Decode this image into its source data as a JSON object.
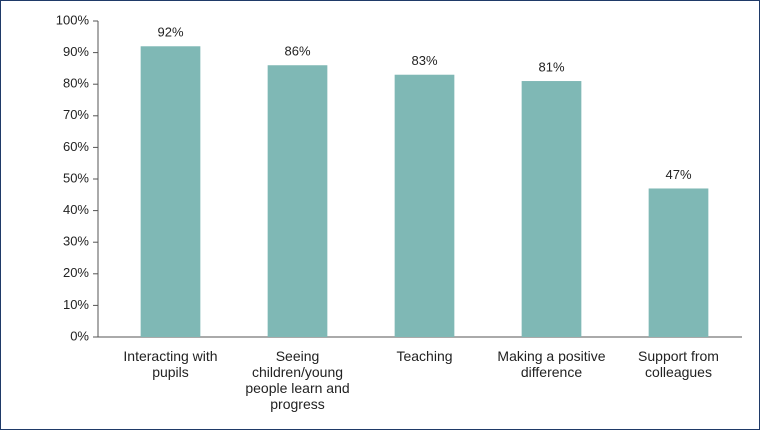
{
  "chart_data": {
    "type": "bar",
    "categories": [
      "Interacting with pupils",
      "Seeing children/young people learn and progress",
      "Teaching",
      "Making a positive difference",
      "Support from colleagues"
    ],
    "values": [
      92,
      86,
      83,
      81,
      47
    ],
    "value_labels": [
      "92%",
      "86%",
      "83%",
      "81%",
      "47%"
    ],
    "color": "#7fb8b5",
    "ylim": [
      0,
      100
    ],
    "yticks": [
      {
        "value": 0,
        "label": "0%"
      },
      {
        "value": 10,
        "label": "10%"
      },
      {
        "value": 20,
        "label": "20%"
      },
      {
        "value": 30,
        "label": "30%"
      },
      {
        "value": 40,
        "label": "40%"
      },
      {
        "value": 50,
        "label": "50%"
      },
      {
        "value": 60,
        "label": "60%"
      },
      {
        "value": 70,
        "label": "70%"
      },
      {
        "value": 80,
        "label": "80%"
      },
      {
        "value": 90,
        "label": "90%"
      },
      {
        "value": 100,
        "label": "100%"
      }
    ],
    "grid": false
  }
}
